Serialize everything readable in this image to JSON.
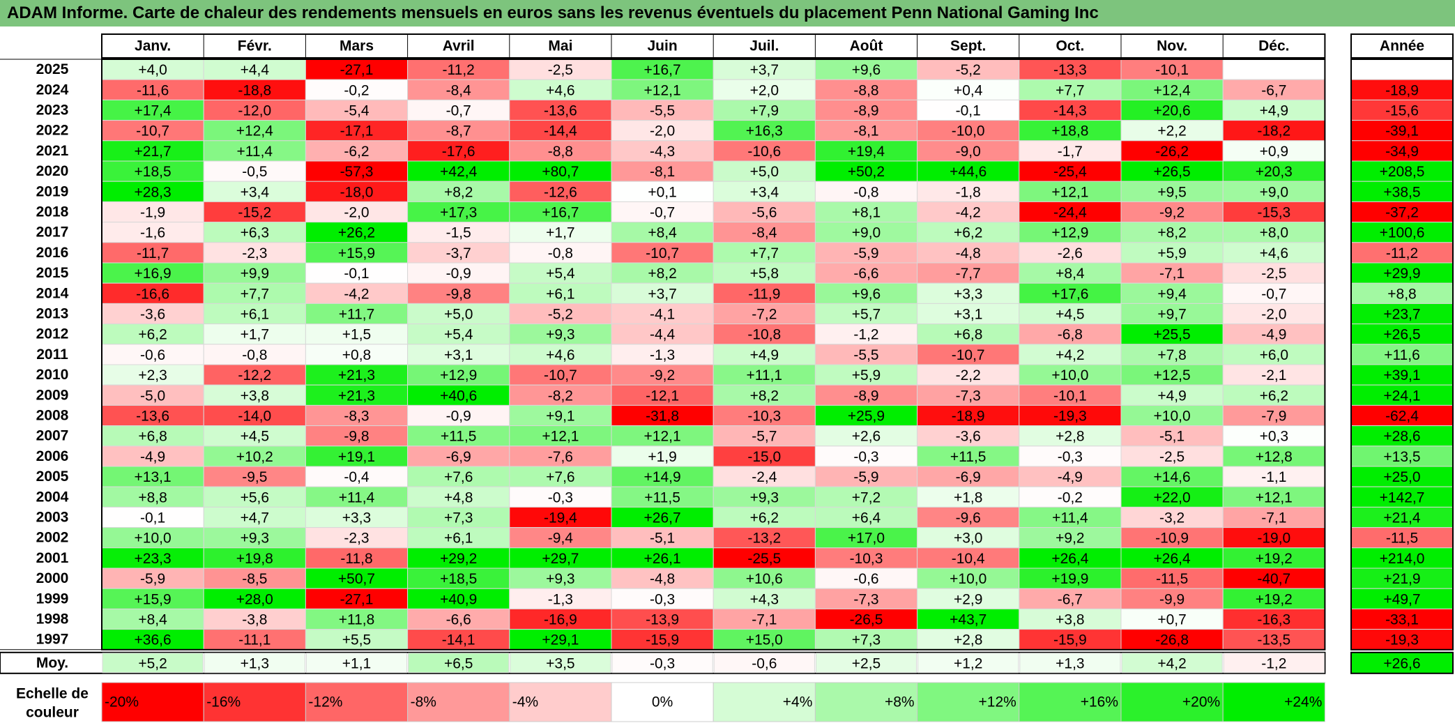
{
  "title": "ADAM Informe. Carte de chaleur des rendements mensuels en euros sans les revenus éventuels du placement Penn National Gaming Inc",
  "chart_data": {
    "type": "heatmap",
    "months": [
      "Janv.",
      "Févr.",
      "Mars",
      "Avril",
      "Mai",
      "Juin",
      "Juil.",
      "Août",
      "Sept.",
      "Oct.",
      "Nov.",
      "Déc."
    ],
    "year_header": "Année",
    "years": [
      "2025",
      "2024",
      "2023",
      "2022",
      "2021",
      "2020",
      "2019",
      "2018",
      "2017",
      "2016",
      "2015",
      "2014",
      "2013",
      "2012",
      "2011",
      "2010",
      "2009",
      "2008",
      "2007",
      "2006",
      "2005",
      "2004",
      "2003",
      "2002",
      "2001",
      "2000",
      "1999",
      "1998",
      "1997"
    ],
    "values": [
      [
        "+4,0",
        "+4,4",
        "-27,1",
        "-11,2",
        "-2,5",
        "+16,7",
        "+3,7",
        "+9,6",
        "-5,2",
        "-13,3",
        "-10,1",
        ""
      ],
      [
        "-11,6",
        "-18,8",
        "-0,2",
        "-8,4",
        "+4,6",
        "+12,1",
        "+2,0",
        "-8,8",
        "+0,4",
        "+7,7",
        "+12,4",
        "-6,7"
      ],
      [
        "+17,4",
        "-12,0",
        "-5,4",
        "-0,7",
        "-13,6",
        "-5,5",
        "+7,9",
        "-8,9",
        "-0,1",
        "-14,3",
        "+20,6",
        "+4,9"
      ],
      [
        "-10,7",
        "+12,4",
        "-17,1",
        "-8,7",
        "-14,4",
        "-2,0",
        "+16,3",
        "-8,1",
        "-10,0",
        "+18,8",
        "+2,2",
        "-18,2"
      ],
      [
        "+21,7",
        "+11,4",
        "-6,2",
        "-17,6",
        "-8,8",
        "-4,3",
        "-10,6",
        "+19,4",
        "-9,0",
        "-1,7",
        "-26,2",
        "+0,9"
      ],
      [
        "+18,5",
        "-0,5",
        "-57,3",
        "+42,4",
        "+80,7",
        "-8,1",
        "+5,0",
        "+50,2",
        "+44,6",
        "-25,4",
        "+26,5",
        "+20,3"
      ],
      [
        "+28,3",
        "+3,4",
        "-18,0",
        "+8,2",
        "-12,6",
        "+0,1",
        "+3,4",
        "-0,8",
        "-1,8",
        "+12,1",
        "+9,5",
        "+9,0"
      ],
      [
        "-1,9",
        "-15,2",
        "-2,0",
        "+17,3",
        "+16,7",
        "-0,7",
        "-5,6",
        "+8,1",
        "-4,2",
        "-24,4",
        "-9,2",
        "-15,3"
      ],
      [
        "-1,6",
        "+6,3",
        "+26,2",
        "-1,5",
        "+1,7",
        "+8,4",
        "-8,4",
        "+9,0",
        "+6,2",
        "+12,9",
        "+8,2",
        "+8,0"
      ],
      [
        "-11,7",
        "-2,3",
        "+15,9",
        "-3,7",
        "-0,8",
        "-10,7",
        "+7,7",
        "-5,9",
        "-4,8",
        "-2,6",
        "+5,9",
        "+4,6"
      ],
      [
        "+16,9",
        "+9,9",
        "-0,1",
        "-0,9",
        "+5,4",
        "+8,2",
        "+5,8",
        "-6,6",
        "-7,7",
        "+8,4",
        "-7,1",
        "-2,5"
      ],
      [
        "-16,6",
        "+7,7",
        "-4,2",
        "-9,8",
        "+6,1",
        "+3,7",
        "-11,9",
        "+9,6",
        "+3,3",
        "+17,6",
        "+9,4",
        "-0,7"
      ],
      [
        "-3,6",
        "+6,1",
        "+11,7",
        "+5,0",
        "-5,2",
        "-4,1",
        "-7,2",
        "+5,7",
        "+3,1",
        "+4,5",
        "+9,7",
        "-2,0"
      ],
      [
        "+6,2",
        "+1,7",
        "+1,5",
        "+5,4",
        "+9,3",
        "-4,4",
        "-10,8",
        "-1,2",
        "+6,8",
        "-6,8",
        "+25,5",
        "-4,9"
      ],
      [
        "-0,6",
        "-0,8",
        "+0,8",
        "+3,1",
        "+4,6",
        "-1,3",
        "+4,9",
        "-5,5",
        "-10,7",
        "+4,2",
        "+7,8",
        "+6,0"
      ],
      [
        "+2,3",
        "-12,2",
        "+21,3",
        "+12,9",
        "-10,7",
        "-9,2",
        "+11,1",
        "+5,9",
        "-2,2",
        "+10,0",
        "+12,5",
        "-2,1"
      ],
      [
        "-5,0",
        "+3,8",
        "+21,3",
        "+40,6",
        "-8,2",
        "-12,1",
        "+8,2",
        "-8,9",
        "-7,3",
        "-10,1",
        "+4,9",
        "+6,2"
      ],
      [
        "-13,6",
        "-14,0",
        "-8,3",
        "-0,9",
        "+9,1",
        "-31,8",
        "-10,3",
        "+25,9",
        "-18,9",
        "-19,3",
        "+10,0",
        "-7,9"
      ],
      [
        "+6,8",
        "+4,5",
        "-9,8",
        "+11,5",
        "+12,1",
        "+12,1",
        "-5,7",
        "+2,6",
        "-3,6",
        "+2,8",
        "-5,1",
        "+0,3"
      ],
      [
        "-4,9",
        "+10,2",
        "+19,1",
        "-6,9",
        "-7,6",
        "+1,9",
        "-15,0",
        "-0,3",
        "+11,5",
        "-0,3",
        "-2,5",
        "+12,8"
      ],
      [
        "+13,1",
        "-9,5",
        "-0,4",
        "+7,6",
        "+7,6",
        "+14,9",
        "-2,4",
        "-5,9",
        "-6,9",
        "-4,9",
        "+14,6",
        "-1,1"
      ],
      [
        "+8,8",
        "+5,6",
        "+11,4",
        "+4,8",
        "-0,3",
        "+11,5",
        "+9,3",
        "+7,2",
        "+1,8",
        "-0,2",
        "+22,0",
        "+12,1"
      ],
      [
        "-0,1",
        "+4,7",
        "+3,3",
        "+7,3",
        "-19,4",
        "+26,7",
        "+6,2",
        "+6,4",
        "-9,6",
        "+11,4",
        "-3,2",
        "-7,1"
      ],
      [
        "+10,0",
        "+9,3",
        "-2,3",
        "+6,1",
        "-9,4",
        "-5,1",
        "-13,2",
        "+17,0",
        "+3,0",
        "+9,2",
        "-10,9",
        "-19,0"
      ],
      [
        "+23,3",
        "+19,8",
        "-11,8",
        "+29,2",
        "+29,7",
        "+26,1",
        "-25,5",
        "-10,3",
        "-10,4",
        "+26,4",
        "+26,4",
        "+19,2"
      ],
      [
        "-5,9",
        "-8,5",
        "+50,7",
        "+18,5",
        "+9,3",
        "-4,8",
        "+10,6",
        "-0,6",
        "+10,0",
        "+19,9",
        "-11,5",
        "-40,7"
      ],
      [
        "+15,9",
        "+28,0",
        "-27,1",
        "+40,9",
        "-1,3",
        "-0,3",
        "+4,3",
        "-7,3",
        "+2,9",
        "-6,7",
        "-9,9",
        "+19,2"
      ],
      [
        "+8,4",
        "-3,8",
        "+11,8",
        "-6,6",
        "-16,9",
        "-13,9",
        "-7,1",
        "-26,5",
        "+43,7",
        "+3,8",
        "+0,7",
        "-16,3"
      ],
      [
        "+36,6",
        "-11,1",
        "+5,5",
        "-14,1",
        "+29,1",
        "-15,9",
        "+15,0",
        "+7,3",
        "+2,8",
        "-15,9",
        "-26,8",
        "-13,5"
      ]
    ],
    "annual": [
      "",
      "-18,9",
      "-15,6",
      "-39,1",
      "-34,9",
      "+208,5",
      "+38,5",
      "-37,2",
      "+100,6",
      "-11,2",
      "+29,9",
      "+8,8",
      "+23,7",
      "+26,5",
      "+11,6",
      "+39,1",
      "+24,1",
      "-62,4",
      "+28,6",
      "+13,5",
      "+25,0",
      "+142,7",
      "+21,4",
      "-11,5",
      "+214,0",
      "+21,9",
      "+49,7",
      "-33,1",
      "-19,3"
    ],
    "average_label": "Moy.",
    "averages": [
      "+5,2",
      "+1,3",
      "+1,1",
      "+6,5",
      "+3,5",
      "-0,3",
      "-0,6",
      "+2,5",
      "+1,2",
      "+1,3",
      "+4,2",
      "-1,2"
    ],
    "average_annual": "+26,6",
    "scale_label": [
      "Echelle de",
      "couleur"
    ],
    "scale": [
      {
        "label": "-20%",
        "value": -20
      },
      {
        "label": "-16%",
        "value": -16
      },
      {
        "label": "-12%",
        "value": -12
      },
      {
        "label": "-8%",
        "value": -8
      },
      {
        "label": "-4%",
        "value": -4
      },
      {
        "label": "0%",
        "value": 0
      },
      {
        "label": "+4%",
        "value": 4
      },
      {
        "label": "+8%",
        "value": 8
      },
      {
        "label": "+12%",
        "value": 12
      },
      {
        "label": "+16%",
        "value": 16
      },
      {
        "label": "+20%",
        "value": 20
      },
      {
        "label": "+24%",
        "value": 24
      }
    ],
    "colors": {
      "negative": "#ff0000",
      "neutral": "#ffffff",
      "positive": "#00ee00"
    }
  }
}
